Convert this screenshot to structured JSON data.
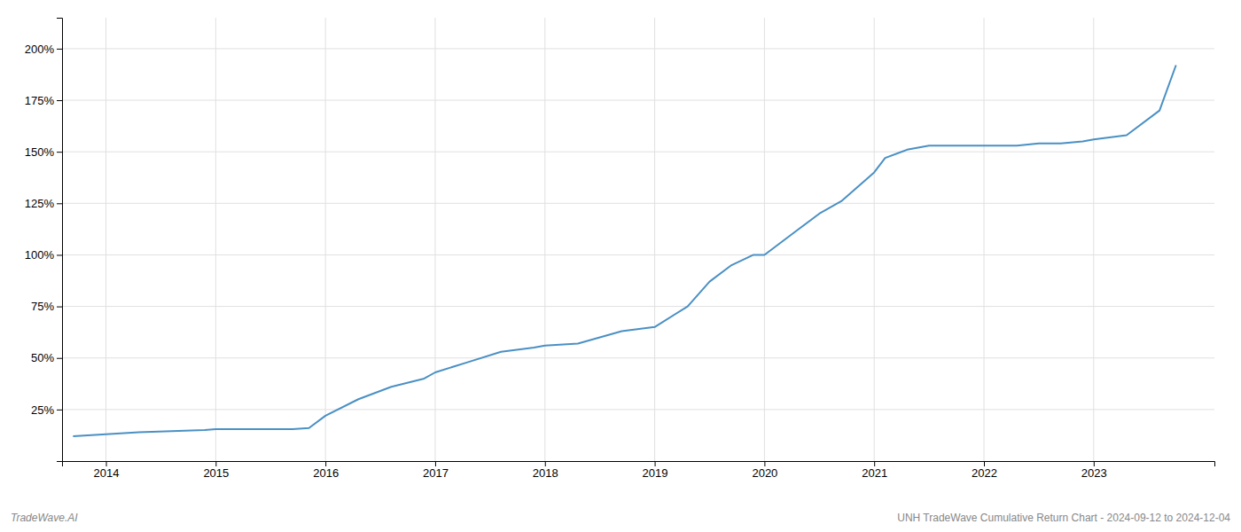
{
  "chart_data": {
    "type": "line",
    "title": "UNH TradeWave Cumulative Return Chart - 2024-09-12 to 2024-12-04",
    "annotations": [
      "TradeWave.AI"
    ],
    "x": [
      2013.7,
      2014.0,
      2014.3,
      2014.6,
      2014.9,
      2015.0,
      2015.2,
      2015.5,
      2015.7,
      2015.85,
      2016.0,
      2016.3,
      2016.6,
      2016.9,
      2017.0,
      2017.3,
      2017.6,
      2017.9,
      2018.0,
      2018.3,
      2018.5,
      2018.7,
      2019.0,
      2019.3,
      2019.5,
      2019.7,
      2019.9,
      2020.0,
      2020.3,
      2020.5,
      2020.7,
      2021.0,
      2021.1,
      2021.3,
      2021.5,
      2021.7,
      2021.9,
      2022.0,
      2022.3,
      2022.5,
      2022.7,
      2022.9,
      2023.0,
      2023.3,
      2023.6,
      2023.75
    ],
    "values": [
      12,
      13,
      14,
      14.5,
      15,
      15.5,
      15.5,
      15.5,
      15.5,
      16,
      22,
      30,
      36,
      40,
      43,
      48,
      53,
      55,
      56,
      57,
      60,
      63,
      65,
      75,
      87,
      95,
      100,
      100,
      112,
      120,
      126,
      140,
      147,
      151,
      153,
      153,
      153,
      153,
      153,
      154,
      154,
      155,
      156,
      158,
      170,
      192
    ],
    "color": "#4a90c4",
    "xlim": [
      2013.6,
      2024.1
    ],
    "ylim": [
      0,
      215
    ],
    "xticks": [
      2014,
      2015,
      2016,
      2017,
      2018,
      2019,
      2020,
      2021,
      2022,
      2023
    ],
    "yticks": [
      {
        "value": 25,
        "label": "25%"
      },
      {
        "value": 50,
        "label": "50%"
      },
      {
        "value": 75,
        "label": "75%"
      },
      {
        "value": 100,
        "label": "100%"
      },
      {
        "value": 125,
        "label": "125%"
      },
      {
        "value": 150,
        "label": "150%"
      },
      {
        "value": 175,
        "label": "175%"
      },
      {
        "value": 200,
        "label": "200%"
      }
    ],
    "grid": true
  }
}
